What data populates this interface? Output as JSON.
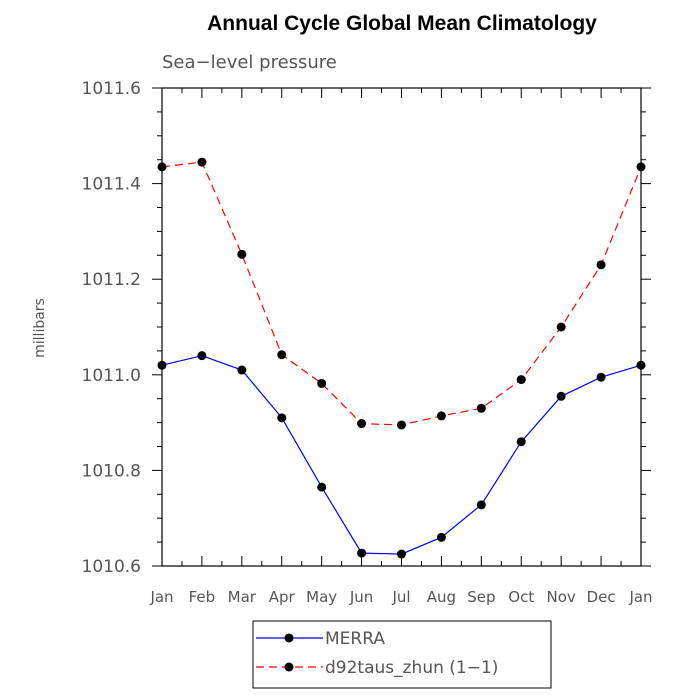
{
  "chart_data": {
    "type": "line",
    "title": "Annual Cycle Global Mean Climatology",
    "subtitle": "Sea−level pressure",
    "xlabel": "",
    "ylabel": "millibars",
    "categories": [
      "Jan",
      "Feb",
      "Mar",
      "Apr",
      "May",
      "Jun",
      "Jul",
      "Aug",
      "Sep",
      "Oct",
      "Nov",
      "Dec",
      "Jan"
    ],
    "ylim": [
      1010.6,
      1011.6
    ],
    "yticks": [
      1010.6,
      1010.8,
      1011.0,
      1011.2,
      1011.4,
      1011.6
    ],
    "ytick_labels": [
      "1010.6",
      "1010.8",
      "1011.0",
      "1011.2",
      "1011.4",
      "1011.6"
    ],
    "grid": false,
    "legend_position": "bottom",
    "series": [
      {
        "name": "MERRA",
        "color": "#0000ff",
        "style": "solid",
        "marker": "filled-circle",
        "values": [
          1011.02,
          1011.04,
          1011.01,
          1010.91,
          1010.765,
          1010.627,
          1010.625,
          1010.66,
          1010.728,
          1010.86,
          1010.955,
          1010.995,
          1011.02
        ]
      },
      {
        "name": "d92taus_zhun (1−1)",
        "color": "#ff0000",
        "style": "dashed",
        "marker": "filled-circle",
        "values": [
          1011.435,
          1011.445,
          1011.252,
          1011.042,
          1010.982,
          1010.898,
          1010.895,
          1010.914,
          1010.93,
          1010.99,
          1011.1,
          1011.23,
          1011.435
        ]
      }
    ]
  }
}
